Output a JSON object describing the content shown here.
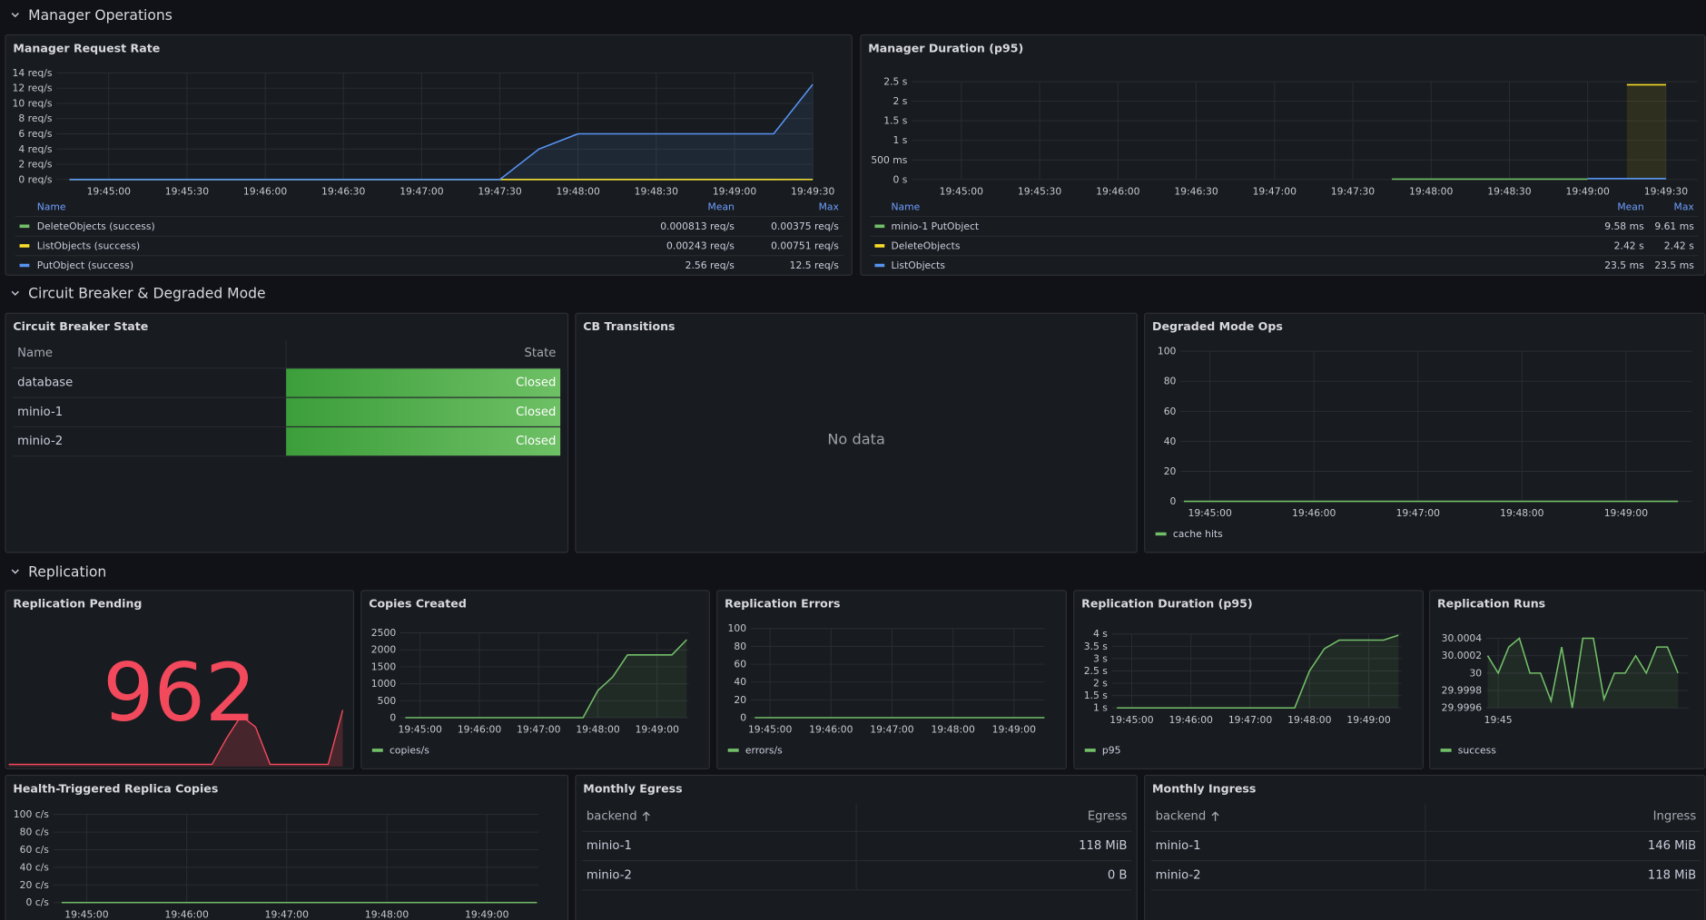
{
  "sections": [
    {
      "title": "Manager Operations",
      "panels": [
        {
          "type": "timeseries",
          "title": "Manager Request Rate",
          "xlim": [
            "19:44:40",
            "19:49:30"
          ],
          "xticks": [
            "19:45:00",
            "19:45:30",
            "19:46:00",
            "19:46:30",
            "19:47:00",
            "19:47:30",
            "19:48:00",
            "19:48:30",
            "19:49:00",
            "19:49:30"
          ],
          "ylim": [
            0,
            14
          ],
          "yticks": [
            {
              "value": 0,
              "label": "0 req/s"
            },
            {
              "value": 2,
              "label": "2 req/s"
            },
            {
              "value": 4,
              "label": "4 req/s"
            },
            {
              "value": 6,
              "label": "6 req/s"
            },
            {
              "value": 8,
              "label": "8 req/s"
            },
            {
              "value": 10,
              "label": "10 req/s"
            },
            {
              "value": 12,
              "label": "12 req/s"
            },
            {
              "value": 14,
              "label": "14 req/s"
            }
          ],
          "x": [
            "19:44:45",
            "19:45:00",
            "19:45:15",
            "19:45:30",
            "19:45:45",
            "19:46:00",
            "19:46:15",
            "19:46:30",
            "19:46:45",
            "19:47:00",
            "19:47:15",
            "19:47:30",
            "19:47:45",
            "19:48:00",
            "19:48:15",
            "19:48:30",
            "19:48:45",
            "19:49:00",
            "19:49:15",
            "19:49:30"
          ],
          "legend_columns": [
            "Name",
            "Mean",
            "Max"
          ],
          "series": [
            {
              "name": "DeleteObjects (success)",
              "color": "#73bf69",
              "values": [
                0,
                0,
                0,
                0,
                0,
                0,
                0,
                0,
                0,
                0,
                0,
                0,
                0.001,
                0.001,
                0.001,
                0.001,
                0.001,
                0.002,
                0.003,
                0.00375
              ],
              "mean": "0.000813 req/s",
              "max": "0.00375 req/s"
            },
            {
              "name": "ListObjects (success)",
              "color": "#fade2a",
              "values": [
                0,
                0,
                0,
                0,
                0,
                0,
                0,
                0,
                0,
                0,
                0,
                0,
                0,
                0.002,
                0.002,
                0.002,
                0.003,
                0.004,
                0.005,
                0.00751
              ],
              "mean": "0.00243 req/s",
              "max": "0.00751 req/s"
            },
            {
              "name": "PutObject (success)",
              "color": "#5794f2",
              "values": [
                0,
                0,
                0,
                0,
                0,
                0,
                0,
                0,
                0,
                0,
                0,
                0,
                4,
                6,
                6,
                6,
                6,
                6,
                6,
                12.5
              ],
              "mean": "2.56 req/s",
              "max": "12.5 req/s"
            }
          ]
        },
        {
          "type": "timeseries",
          "title": "Manager Duration (p95)",
          "xlim": [
            "19:44:41",
            "19:49:42"
          ],
          "xticks": [
            "19:45:00",
            "19:45:30",
            "19:46:00",
            "19:46:30",
            "19:47:00",
            "19:47:30",
            "19:48:00",
            "19:48:30",
            "19:49:00",
            "19:49:30"
          ],
          "ylim": [
            0,
            2.5
          ],
          "yticks": [
            {
              "value": 0,
              "label": "0 s"
            },
            {
              "value": 0.5,
              "label": "500 ms"
            },
            {
              "value": 1,
              "label": "1 s"
            },
            {
              "value": 1.5,
              "label": "1.5 s"
            },
            {
              "value": 2,
              "label": "2 s"
            },
            {
              "value": 2.5,
              "label": "2.5 s"
            }
          ],
          "x": [
            "19:44:45",
            "19:45:00",
            "19:45:15",
            "19:45:30",
            "19:45:45",
            "19:46:00",
            "19:46:15",
            "19:46:30",
            "19:46:45",
            "19:47:00",
            "19:47:15",
            "19:47:30",
            "19:47:45",
            "19:48:00",
            "19:48:15",
            "19:48:30",
            "19:48:45",
            "19:49:00",
            "19:49:15",
            "19:49:30"
          ],
          "legend_columns": [
            "Name",
            "Mean",
            "Max"
          ],
          "series": [
            {
              "name": "minio-1 PutObject",
              "color": "#73bf69",
              "values": [
                null,
                null,
                null,
                null,
                null,
                null,
                null,
                null,
                null,
                null,
                null,
                null,
                0.00958,
                0.00955,
                0.00961,
                0.00958,
                0.00957,
                0.00959,
                null,
                null
              ],
              "mean": "9.58 ms",
              "max": "9.61 ms"
            },
            {
              "name": "DeleteObjects",
              "color": "#fade2a",
              "values": [
                null,
                null,
                null,
                null,
                null,
                null,
                null,
                null,
                null,
                null,
                null,
                null,
                null,
                null,
                null,
                null,
                null,
                null,
                2.42,
                2.42
              ],
              "mean": "2.42 s",
              "max": "2.42 s"
            },
            {
              "name": "ListObjects",
              "color": "#5794f2",
              "values": [
                null,
                null,
                null,
                null,
                null,
                null,
                null,
                null,
                null,
                null,
                null,
                null,
                null,
                null,
                null,
                null,
                null,
                0.0235,
                0.0235,
                0.0235
              ],
              "mean": "23.5 ms",
              "max": "23.5 ms"
            }
          ]
        }
      ]
    },
    {
      "title": "Circuit Breaker & Degraded Mode",
      "panels": [
        {
          "type": "table",
          "title": "Circuit Breaker State",
          "columns": [
            "Name",
            "State"
          ],
          "rows": [
            [
              "database",
              "Closed"
            ],
            [
              "minio-1",
              "Closed"
            ],
            [
              "minio-2",
              "Closed"
            ]
          ]
        },
        {
          "type": "nodata",
          "title": "CB Transitions",
          "message": "No data"
        },
        {
          "type": "timeseries",
          "title": "Degraded Mode Ops",
          "xlim": [
            "19:44:43",
            "19:49:38"
          ],
          "xticks": [
            "19:45:00",
            "19:46:00",
            "19:47:00",
            "19:48:00",
            "19:49:00"
          ],
          "ylim": [
            0,
            100
          ],
          "yticks": [
            0,
            20,
            40,
            60,
            80,
            100
          ],
          "x": [
            "19:44:45",
            "19:45:00",
            "19:45:15",
            "19:45:30",
            "19:45:45",
            "19:46:00",
            "19:46:15",
            "19:46:30",
            "19:46:45",
            "19:47:00",
            "19:47:15",
            "19:47:30",
            "19:47:45",
            "19:48:00",
            "19:48:15",
            "19:48:30",
            "19:48:45",
            "19:49:00",
            "19:49:15",
            "19:49:30"
          ],
          "series": [
            {
              "name": "cache hits",
              "color": "#73bf69",
              "values": [
                0,
                0,
                0,
                0,
                0,
                0,
                0,
                0,
                0,
                0,
                0,
                0,
                0,
                0,
                0,
                0,
                0,
                0,
                0,
                0
              ]
            }
          ]
        }
      ]
    },
    {
      "title": "Replication",
      "panels": [
        {
          "type": "stat",
          "title": "Replication Pending",
          "value": 962,
          "color": "#f2495c",
          "sparkline": [
            2,
            2,
            2,
            2,
            2,
            2,
            2,
            2,
            2,
            2,
            2,
            2,
            2,
            2,
            2,
            25,
            45,
            35,
            2,
            2,
            2,
            2,
            2,
            50
          ]
        },
        {
          "type": "timeseries",
          "title": "Copies Created",
          "xlim": [
            "19:44:40",
            "19:49:32"
          ],
          "xticks": [
            "19:45:00",
            "19:46:00",
            "19:47:00",
            "19:48:00",
            "19:49:00"
          ],
          "ylim": [
            0,
            2500
          ],
          "yticks": [
            0,
            500,
            1000,
            1500,
            2000,
            2500
          ],
          "x": [
            "19:44:45",
            "19:45:00",
            "19:45:15",
            "19:45:30",
            "19:45:45",
            "19:46:00",
            "19:46:15",
            "19:46:30",
            "19:46:45",
            "19:47:00",
            "19:47:15",
            "19:47:30",
            "19:47:45",
            "19:48:00",
            "19:48:15",
            "19:48:30",
            "19:48:45",
            "19:49:00",
            "19:49:15",
            "19:49:30"
          ],
          "series": [
            {
              "name": "copies/s",
              "color": "#73bf69",
              "values": [
                0,
                0,
                0,
                0,
                0,
                0,
                0,
                0,
                0,
                0,
                0,
                0,
                0,
                800,
                1200,
                1850,
                1850,
                1850,
                1850,
                2300
              ]
            }
          ]
        },
        {
          "type": "timeseries",
          "title": "Replication Errors",
          "xlim": [
            "19:44:41",
            "19:49:30"
          ],
          "xticks": [
            "19:45:00",
            "19:46:00",
            "19:47:00",
            "19:48:00",
            "19:49:00"
          ],
          "ylim": [
            0,
            100
          ],
          "yticks": [
            0,
            20,
            40,
            60,
            80,
            100
          ],
          "x": [
            "19:44:45",
            "19:45:00",
            "19:45:15",
            "19:45:30",
            "19:45:45",
            "19:46:00",
            "19:46:15",
            "19:46:30",
            "19:46:45",
            "19:47:00",
            "19:47:15",
            "19:47:30",
            "19:47:45",
            "19:48:00",
            "19:48:15",
            "19:48:30",
            "19:48:45",
            "19:49:00",
            "19:49:15",
            "19:49:30"
          ],
          "series": [
            {
              "name": "errors/s",
              "color": "#73bf69",
              "values": [
                0,
                0,
                0,
                0,
                0,
                0,
                0,
                0,
                0,
                0,
                0,
                0,
                0,
                0,
                0,
                0,
                0,
                0,
                0,
                0
              ]
            }
          ]
        },
        {
          "type": "timeseries",
          "title": "Replication Duration (p95)",
          "xlim": [
            "19:44:40",
            "19:49:33"
          ],
          "xticks": [
            "19:45:00",
            "19:46:00",
            "19:47:00",
            "19:48:00",
            "19:49:00"
          ],
          "ylim": [
            1,
            4
          ],
          "yticks": [
            {
              "value": 1,
              "label": "1 s"
            },
            {
              "value": 1.5,
              "label": "1.5 s"
            },
            {
              "value": 2,
              "label": "2 s"
            },
            {
              "value": 2.5,
              "label": "2.5 s"
            },
            {
              "value": 3,
              "label": "3 s"
            },
            {
              "value": 3.5,
              "label": "3.5 s"
            },
            {
              "value": 4,
              "label": "4 s"
            }
          ],
          "x": [
            "19:44:45",
            "19:45:00",
            "19:45:15",
            "19:45:30",
            "19:45:45",
            "19:46:00",
            "19:46:15",
            "19:46:30",
            "19:46:45",
            "19:47:00",
            "19:47:15",
            "19:47:30",
            "19:47:45",
            "19:48:00",
            "19:48:15",
            "19:48:30",
            "19:48:45",
            "19:49:00",
            "19:49:15",
            "19:49:30"
          ],
          "series": [
            {
              "name": "p95",
              "color": "#73bf69",
              "values": [
                1,
                1,
                1,
                1,
                1,
                1,
                1,
                1,
                1,
                1,
                1,
                1,
                1,
                2.5,
                3.4,
                3.75,
                3.75,
                3.75,
                3.75,
                3.95
              ]
            }
          ]
        },
        {
          "type": "timeseries",
          "title": "Replication Runs",
          "xlim": [
            "19:44:43",
            "19:49:30"
          ],
          "xticks": [
            "19:45"
          ],
          "ylim": [
            29.9996,
            30.0004
          ],
          "yticks": [
            29.9996,
            29.9998,
            30,
            30.0002,
            30.0004
          ],
          "x": [
            "19:44:45",
            "19:45:00",
            "19:45:15",
            "19:45:30",
            "19:45:45",
            "19:46:00",
            "19:46:15",
            "19:46:30",
            "19:46:45",
            "19:47:00",
            "19:47:15",
            "19:47:30",
            "19:47:45",
            "19:48:00",
            "19:48:15",
            "19:48:30",
            "19:48:45",
            "19:49:00",
            "19:49:15"
          ],
          "series": [
            {
              "name": "success",
              "color": "#73bf69",
              "values": [
                30.0002,
                30,
                30.0003,
                30.0004,
                30,
                30,
                29.99968,
                30.0003,
                29.9996,
                30.0004,
                30.0004,
                29.9997,
                30,
                30,
                30.0002,
                30,
                30.0003,
                30.0003,
                30
              ]
            }
          ]
        },
        {
          "type": "timeseries",
          "title": "Health-Triggered Replica Copies",
          "xlim": [
            "19:44:40",
            "19:49:31"
          ],
          "xticks": [
            "19:45:00",
            "19:46:00",
            "19:47:00",
            "19:48:00",
            "19:49:00"
          ],
          "ylim": [
            0,
            100
          ],
          "yticks": [
            {
              "value": 0,
              "label": "0 c/s"
            },
            {
              "value": 20,
              "label": "20 c/s"
            },
            {
              "value": 40,
              "label": "40 c/s"
            },
            {
              "value": 60,
              "label": "60 c/s"
            },
            {
              "value": 80,
              "label": "80 c/s"
            },
            {
              "value": 100,
              "label": "100 c/s"
            }
          ],
          "x": [
            "19:44:45",
            "19:45:00",
            "19:45:15",
            "19:45:30",
            "19:45:45",
            "19:46:00",
            "19:46:15",
            "19:46:30",
            "19:46:45",
            "19:47:00",
            "19:47:15",
            "19:47:30",
            "19:47:45",
            "19:48:00",
            "19:48:15",
            "19:48:30",
            "19:48:45",
            "19:49:00",
            "19:49:15",
            "19:49:30"
          ],
          "series": [
            {
              "color": "#73bf69",
              "values": [
                0,
                0,
                0,
                0,
                0,
                0,
                0,
                0,
                0,
                0,
                0,
                0,
                0,
                0,
                0,
                0,
                0,
                0,
                0,
                0
              ]
            }
          ]
        },
        {
          "type": "table",
          "title": "Monthly Egress",
          "columns": [
            "backend",
            "Egress"
          ],
          "rows": [
            [
              "minio-1",
              "118 MiB"
            ],
            [
              "minio-2",
              "0 B"
            ]
          ]
        },
        {
          "type": "table",
          "title": "Monthly Ingress",
          "columns": [
            "backend",
            "Ingress"
          ],
          "rows": [
            [
              "minio-1",
              "146 MiB"
            ],
            [
              "minio-2",
              "118 MiB"
            ]
          ]
        }
      ]
    }
  ]
}
